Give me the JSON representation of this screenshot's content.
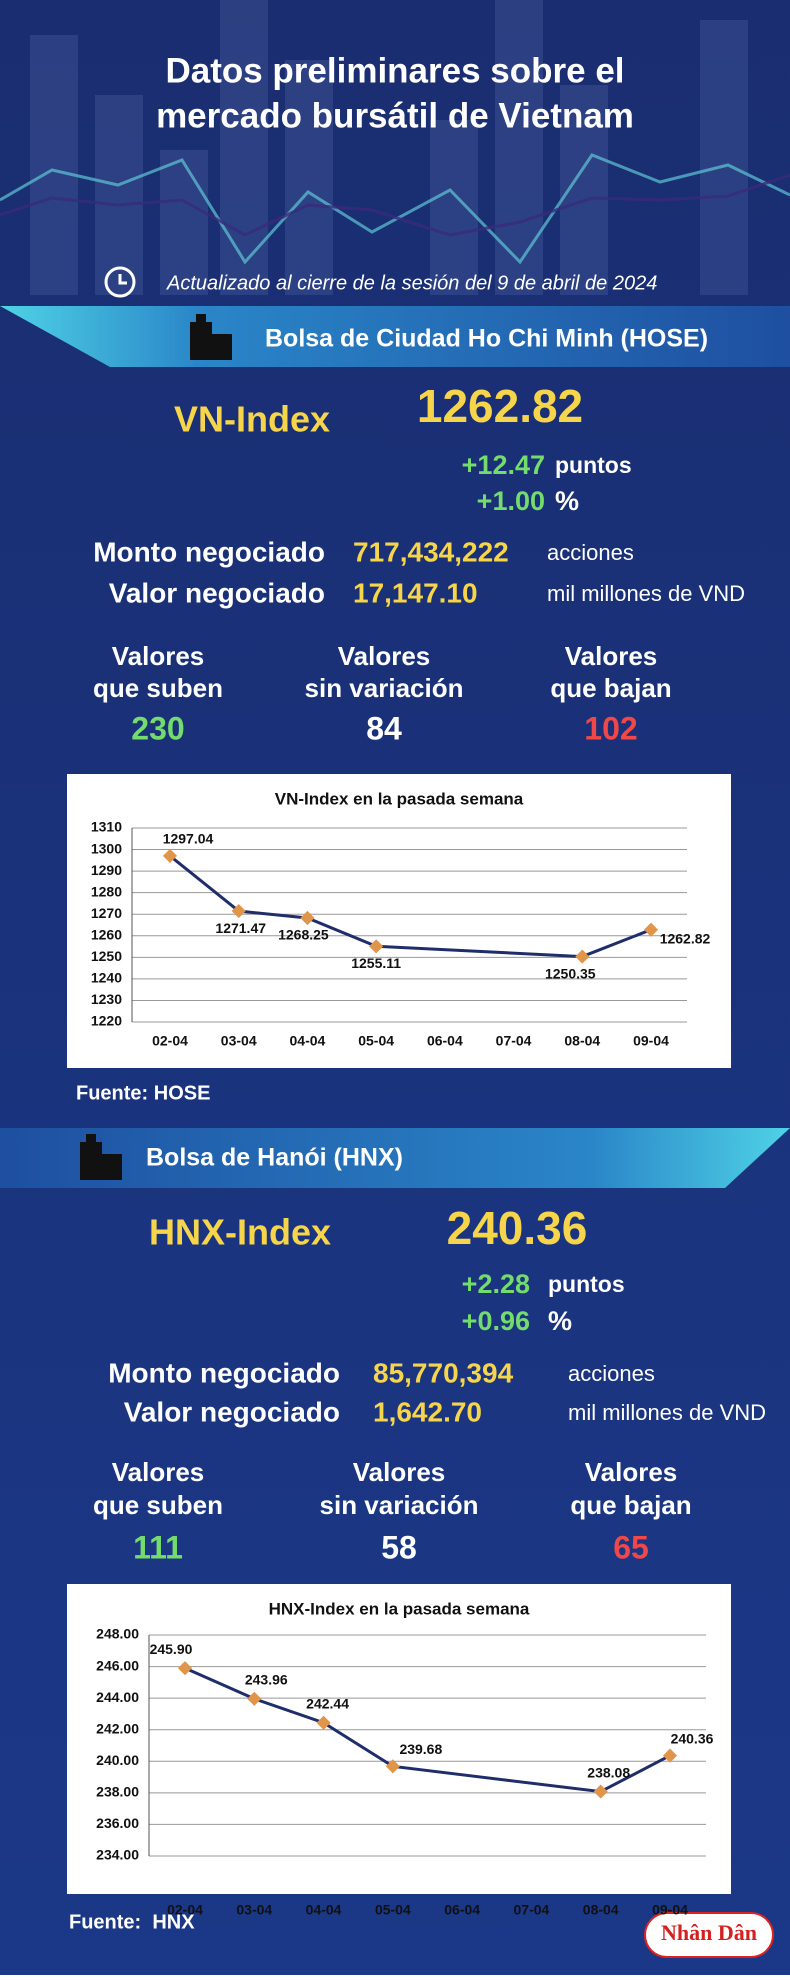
{
  "header": {
    "title": [
      "Datos preliminares sobre el",
      "mercado bursátil de Vietnam"
    ],
    "updated": "Actualizado al cierre de la sesión del 9 de abril de 2024"
  },
  "hose": {
    "name": "Bolsa de Ciudad Ho Chi Minh (HOSE)",
    "index_name": "VN-Index",
    "index_value": "1262.82",
    "change": "+12.47",
    "change_unit": "puntos",
    "pct": "+1.00",
    "pct_unit": "%",
    "rows": [
      [
        "Monto negociado",
        "717,434,222",
        "acciones"
      ],
      [
        "Valor negociado",
        "17,147.10",
        "mil millones de VND"
      ]
    ],
    "counts": [
      {
        "label": [
          "Valores",
          "que suben"
        ],
        "value": "230"
      },
      {
        "label": [
          "Valores",
          "sin variación"
        ],
        "value": "84"
      },
      {
        "label": [
          "Valores",
          "que bajan"
        ],
        "value": "102"
      }
    ],
    "source": "Fuente: HOSE"
  },
  "hnx": {
    "name": "Bolsa de Hanói (HNX)",
    "index_name": "HNX-Index",
    "index_value": "240.36",
    "change": "+2.28",
    "change_unit": "puntos",
    "pct": "+0.96",
    "pct_unit": "%",
    "rows": [
      [
        "Monto negociado",
        "85,770,394",
        "acciones"
      ],
      [
        "Valor negociado",
        "1,642.70",
        "mil millones de VND"
      ]
    ],
    "counts": [
      {
        "label": [
          "Valores",
          "que suben"
        ],
        "value": "111"
      },
      {
        "label": [
          "Valores",
          "sin variación"
        ],
        "value": "58"
      },
      {
        "label": [
          "Valores",
          "que bajan"
        ],
        "value": "65"
      }
    ],
    "source": "Fuente:  HNX"
  },
  "logo": "Nhân Dân",
  "chart_data": [
    {
      "type": "line",
      "title": "VN-Index en la pasada semana",
      "xticks": [
        "02-04",
        "03-04",
        "04-04",
        "05-04",
        "06-04",
        "07-04",
        "08-04",
        "09-04"
      ],
      "x": [
        "02-04",
        "03-04",
        "04-04",
        "05-04",
        "08-04",
        "09-04"
      ],
      "values": [
        1297.04,
        1271.47,
        1268.25,
        1255.11,
        1250.35,
        1262.82
      ],
      "ylim": [
        1220,
        1310
      ],
      "yticks": [
        1220,
        1230,
        1240,
        1250,
        1260,
        1270,
        1280,
        1290,
        1300,
        1310
      ],
      "grid": true,
      "color": "#1f2d6b",
      "marker_color": "#e0954a"
    },
    {
      "type": "line",
      "title": "HNX-Index en la pasada semana",
      "xticks": [
        "02-04",
        "03-04",
        "04-04",
        "05-04",
        "06-04",
        "07-04",
        "08-04",
        "09-04"
      ],
      "x": [
        "02-04",
        "03-04",
        "04-04",
        "05-04",
        "08-04",
        "09-04"
      ],
      "values": [
        245.9,
        243.96,
        242.44,
        239.68,
        238.08,
        240.36
      ],
      "value_labels": [
        "245.90",
        "243.96",
        "242.44",
        "239.68",
        "238.08",
        "240.36"
      ],
      "ylim": [
        234,
        248
      ],
      "yticks": [
        {
          "value": 234,
          "label": "234.00"
        },
        {
          "value": 236,
          "label": "236.00"
        },
        {
          "value": 238,
          "label": "238.00"
        },
        {
          "value": 240,
          "label": "240.00"
        },
        {
          "value": 242,
          "label": "242.00"
        },
        {
          "value": 244,
          "label": "244.00"
        },
        {
          "value": 246,
          "label": "246.00"
        },
        {
          "value": 248,
          "label": "248.00"
        }
      ],
      "grid": true,
      "color": "#1f2d6b",
      "marker_color": "#e0954a"
    }
  ]
}
